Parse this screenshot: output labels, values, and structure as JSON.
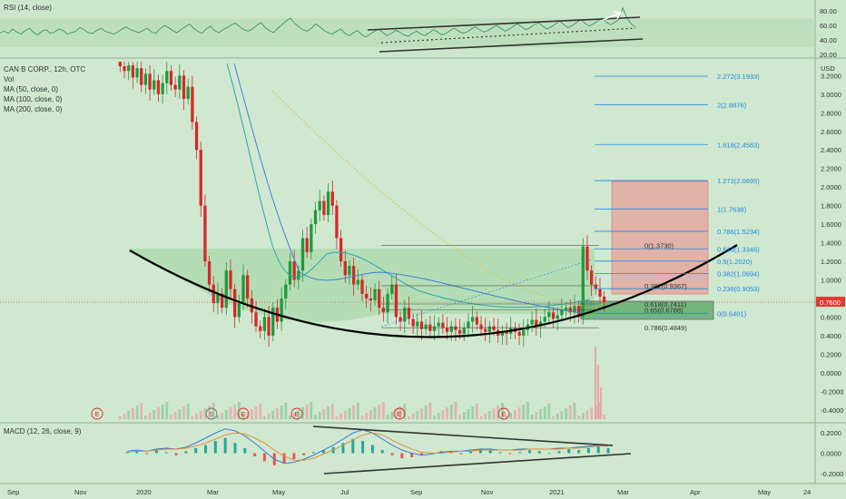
{
  "chart_data": [
    {
      "type": "line",
      "pane": "rsi",
      "title": "RSI (14, close)",
      "ylim": [
        20,
        90
      ],
      "y_ticks": [
        80.0,
        60.0,
        40.0,
        20.0
      ],
      "y_tick_labels": [
        "80.00",
        "60.00",
        "40.00",
        "20.00"
      ],
      "band": [
        30,
        70
      ],
      "series": [
        {
          "values": [
            50,
            52,
            49,
            55,
            51,
            48,
            53,
            56,
            50,
            47,
            52,
            54,
            49,
            51,
            55,
            53,
            48,
            50,
            52,
            57,
            54,
            50,
            49,
            53,
            56,
            52,
            50,
            48,
            51,
            55,
            58,
            54,
            52,
            50,
            53,
            56,
            51,
            49,
            55,
            60,
            57,
            53,
            50,
            54,
            58,
            62,
            56,
            52,
            49,
            55,
            59,
            53,
            50,
            54,
            57,
            61,
            63,
            58,
            54,
            52,
            55,
            60,
            64,
            57,
            53,
            50,
            56,
            61,
            66,
            70,
            63,
            58,
            54,
            52,
            56,
            62,
            58,
            53,
            50,
            48,
            52,
            55,
            49,
            46,
            50,
            53,
            47,
            44,
            48,
            52,
            55,
            50,
            46,
            49,
            53,
            51,
            47,
            45,
            49,
            52,
            48,
            46,
            50,
            54,
            51,
            47,
            49,
            53,
            56,
            52,
            49,
            51,
            55,
            58,
            54,
            51,
            53,
            57,
            60,
            56,
            52,
            55,
            59,
            62,
            58,
            54,
            57,
            61,
            64,
            59,
            55,
            58,
            62,
            66,
            61,
            57,
            60,
            64,
            68,
            63,
            59,
            62,
            66,
            70,
            65,
            61,
            64,
            68,
            84,
            70,
            62,
            58
          ]
        }
      ],
      "annotations": {
        "channel_upper": [
          [
            0.4,
            59
          ],
          [
            0.76,
            71
          ]
        ],
        "channel_lower": [
          [
            0.4,
            36
          ],
          [
            0.76,
            46
          ]
        ],
        "channel_mid": [
          [
            0.45,
            48
          ],
          [
            0.77,
            57
          ]
        ]
      }
    },
    {
      "type": "candlestick",
      "pane": "price",
      "title": "CAN B CORP., 12h, OTC",
      "indicators": [
        "Vol",
        "MA (50, close, 0)",
        "MA (100, close, 0)",
        "MA (200, close, 0)"
      ],
      "ylabel": "USD",
      "ylim": [
        -0.5,
        3.35
      ],
      "y_ticks": [
        3.2,
        3.0,
        2.8,
        2.6,
        2.4,
        2.2,
        2.0,
        1.8,
        1.6,
        1.4,
        1.2,
        1.0,
        0.8,
        0.6,
        0.4,
        0.2,
        0.0,
        -0.2,
        -0.4
      ],
      "y_tick_labels": [
        "3.2000",
        "3.0000",
        "2.8000",
        "2.6000",
        "2.4000",
        "2.2000",
        "2.0000",
        "1.8000",
        "1.6000",
        "1.4000",
        "1.2000",
        "1.0000",
        "0.8000",
        "0.6000",
        "0.4000",
        "0.2000",
        "0.0000",
        "-0.2000",
        "-0.4000"
      ],
      "x_tick_labels": [
        "Sep",
        "Nov",
        "2020",
        "Mar",
        "May",
        "Jul",
        "Sep",
        "Nov",
        "2021",
        "Mar",
        "Apr",
        "May",
        "24"
      ],
      "last_price": 0.76,
      "last_price_label": "0.7600",
      "closes": [
        3.3,
        3.25,
        3.31,
        3.18,
        3.28,
        3.1,
        3.22,
        3.05,
        3.15,
        3.0,
        3.12,
        3.25,
        3.1,
        3.05,
        3.2,
        2.95,
        3.08,
        2.7,
        2.4,
        1.8,
        1.2,
        0.95,
        0.75,
        0.85,
        0.7,
        1.1,
        0.9,
        0.6,
        0.75,
        1.05,
        0.8,
        0.65,
        0.5,
        0.45,
        0.6,
        0.4,
        0.7,
        0.55,
        0.8,
        0.95,
        1.2,
        1.0,
        1.1,
        1.45,
        1.3,
        1.6,
        1.75,
        1.85,
        1.7,
        1.95,
        1.8,
        1.45,
        1.2,
        1.05,
        1.15,
        0.95,
        1.0,
        0.85,
        0.8,
        0.78,
        0.9,
        0.7,
        0.65,
        0.85,
        0.95,
        0.6,
        0.55,
        0.7,
        0.58,
        0.5,
        0.55,
        0.47,
        0.52,
        0.45,
        0.5,
        0.54,
        0.48,
        0.44,
        0.5,
        0.46,
        0.42,
        0.48,
        0.55,
        0.6,
        0.52,
        0.47,
        0.44,
        0.5,
        0.46,
        0.4,
        0.45,
        0.42,
        0.48,
        0.44,
        0.4,
        0.46,
        0.52,
        0.57,
        0.5,
        0.55,
        0.6,
        0.65,
        0.58,
        0.62,
        0.68,
        0.7,
        0.65,
        0.72,
        0.6,
        1.36,
        1.1,
        0.95,
        0.9,
        0.82,
        0.76
      ],
      "fib_levels": [
        {
          "ratio": "2.272",
          "value": 3.1933,
          "label": "2.272(3.1933)"
        },
        {
          "ratio": "2",
          "value": 2.8876,
          "label": "2(2.8876)"
        },
        {
          "ratio": "1.618",
          "value": 2.4583,
          "label": "1.618(2.4583)"
        },
        {
          "ratio": "1.272",
          "value": 2.0695,
          "label": "1.272(2.0695)"
        },
        {
          "ratio": "1",
          "value": 1.7638,
          "label": "1(1.7638)"
        },
        {
          "ratio": "0.786",
          "value": 1.5234,
          "label": "0.786(1.5234)"
        },
        {
          "ratio": "0.618",
          "value": 1.3346,
          "label": "0.618(1.3346)"
        },
        {
          "ratio": "0.5",
          "value": 1.202,
          "label": "0.5(1.2020)"
        },
        {
          "ratio": "0.382",
          "value": 1.0694,
          "label": "0.382(1.0694)"
        },
        {
          "ratio": "0.236",
          "value": 0.9053,
          "label": "0.236(0.9053)"
        },
        {
          "ratio": "0",
          "value": 0.6401,
          "label": "0(0.6401)"
        }
      ],
      "retracement_levels": [
        {
          "value": 1.373,
          "label": "0(1.3730)"
        },
        {
          "value": 0.9367,
          "label": "0.382(0.9367)"
        },
        {
          "value": 0.7411,
          "label": "0.618(0.7411)"
        },
        {
          "value": 0.6788,
          "label": "0.65(0.6788)"
        },
        {
          "value": 0.4849,
          "label": "0.786(0.4849)"
        }
      ],
      "earnings_markers": [
        "E",
        "S",
        "E",
        "E",
        "E",
        "E"
      ],
      "position": {
        "entry": 0.85,
        "target": 2.1,
        "stop": 0.6401
      }
    },
    {
      "type": "bar",
      "pane": "macd",
      "title": "MACD (12, 26, close, 9)",
      "ylim": [
        -0.3,
        0.3
      ],
      "y_ticks": [
        0.2,
        0.0,
        -0.2
      ],
      "y_tick_labels": [
        "0.2000",
        "0.0000",
        "-0.2000"
      ],
      "histogram": [
        0.01,
        0.02,
        -0.01,
        0.03,
        0.01,
        -0.02,
        0.02,
        0.05,
        0.08,
        0.12,
        0.15,
        0.1,
        0.05,
        -0.03,
        -0.08,
        -0.12,
        -0.1,
        -0.06,
        -0.02,
        0.01,
        0.03,
        0.06,
        0.1,
        0.14,
        0.12,
        0.08,
        0.03,
        -0.02,
        -0.05,
        -0.04,
        -0.02,
        0.0,
        0.02,
        0.01,
        -0.01,
        0.02,
        0.04,
        0.03,
        0.01,
        -0.01,
        0.01,
        0.03,
        0.02,
        0.0,
        0.02,
        0.04,
        0.03,
        0.05,
        0.07,
        0.05
      ],
      "macd_line": [
        0.02,
        0.03,
        0.02,
        0.04,
        0.05,
        0.04,
        0.06,
        0.1,
        0.15,
        0.2,
        0.24,
        0.22,
        0.17,
        0.1,
        0.02,
        -0.06,
        -0.1,
        -0.09,
        -0.06,
        -0.02,
        0.03,
        0.08,
        0.14,
        0.2,
        0.23,
        0.2,
        0.14,
        0.08,
        0.03,
        0.0,
        -0.02,
        -0.01,
        0.01,
        0.02,
        0.02,
        0.03,
        0.04,
        0.04,
        0.03,
        0.03,
        0.04,
        0.04,
        0.04,
        0.04,
        0.05,
        0.05,
        0.06,
        0.07,
        0.08,
        0.07
      ],
      "signal_line": [
        0.01,
        0.02,
        0.02,
        0.03,
        0.04,
        0.04,
        0.05,
        0.07,
        0.1,
        0.14,
        0.18,
        0.2,
        0.19,
        0.15,
        0.1,
        0.03,
        -0.03,
        -0.07,
        -0.07,
        -0.05,
        -0.01,
        0.03,
        0.08,
        0.13,
        0.18,
        0.2,
        0.18,
        0.13,
        0.08,
        0.04,
        0.01,
        0.0,
        0.0,
        0.01,
        0.02,
        0.02,
        0.03,
        0.03,
        0.03,
        0.03,
        0.03,
        0.04,
        0.04,
        0.04,
        0.04,
        0.05,
        0.05,
        0.06,
        0.07,
        0.07
      ]
    }
  ],
  "colors": {
    "bull": "#1f9a3b",
    "bear": "#d62828",
    "fib": "#1e88e5",
    "ma50": "#2aa7a7",
    "ma100": "#3f7fd6",
    "ma200": "#e0b84a",
    "curve": "#000000",
    "price_tag": "#e53935"
  }
}
